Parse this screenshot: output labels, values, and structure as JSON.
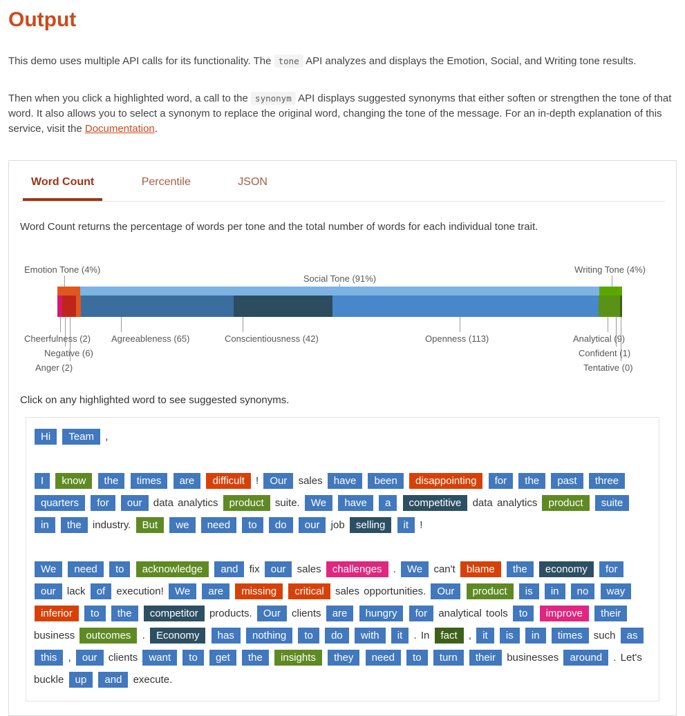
{
  "page": {
    "title": "Output",
    "intro1_pre": "This demo uses multiple API calls for its functionality. The",
    "intro1_code": "tone",
    "intro1_post": "API analyzes and displays the Emotion, Social, and Writing tone results.",
    "intro2_pre": "Then when you click a highlighted word, a call to the",
    "intro2_code": "synonym",
    "intro2_mid": "API displays suggested synonyms that either soften or strengthen the tone of that word. It also allows you to select a synonym to replace the original word, changing the tone of the message. For an in-depth explanation of this service, visit the",
    "intro2_link": "Documentation",
    "intro2_end": "."
  },
  "tabs": [
    {
      "label": "Word Count",
      "active": true
    },
    {
      "label": "Percentile",
      "active": false
    },
    {
      "label": "JSON",
      "active": false
    }
  ],
  "word_count_description": "Word Count returns the percentage of words per tone and the total number of words for each individual tone trait.",
  "click_instruction": "Click on any highlighted word to see suggested synonyms.",
  "chart_data": {
    "type": "stacked-bar",
    "tones": [
      {
        "name": "emotion-tone",
        "label": "Emotion Tone (4%)",
        "percent": 4,
        "color": "#e0571e"
      },
      {
        "name": "social-tone",
        "label": "Social Tone (91%)",
        "percent": 91,
        "color": "#7cb3e3"
      },
      {
        "name": "writing-tone",
        "label": "Writing Tone (4%)",
        "percent": 4,
        "color": "#5aa700"
      }
    ],
    "traits": [
      {
        "name": "cheerfulness",
        "label": "Cheerfulness (2)",
        "count": 2,
        "color": "#d6186c"
      },
      {
        "name": "negative",
        "label": "Negative (6)",
        "count": 6,
        "color": "#c0251c"
      },
      {
        "name": "anger",
        "label": "Anger (2)",
        "count": 2,
        "color": "#e0571e"
      },
      {
        "name": "agreeableness",
        "label": "Agreeableness (65)",
        "count": 65,
        "color": "#3b6e9e"
      },
      {
        "name": "conscientiousness",
        "label": "Conscientiousness (42)",
        "count": 42,
        "color": "#2c4d5f"
      },
      {
        "name": "openness",
        "label": "Openness (113)",
        "count": 113,
        "color": "#4887c9"
      },
      {
        "name": "analytical",
        "label": "Analytical (9)",
        "count": 9,
        "color": "#5a9216"
      },
      {
        "name": "confident",
        "label": "Confident (1)",
        "count": 1,
        "color": "#3e6119"
      },
      {
        "name": "tentative",
        "label": "Tentative (0)",
        "count": 0,
        "color": "#808080"
      }
    ]
  },
  "message": {
    "colors": {
      "b": "#4178be",
      "g": "#5f8a23",
      "o": "#d74108",
      "s": "#2d4f63",
      "p": "#e0267e",
      "d": "#3e6119"
    },
    "paragraphs": [
      [
        [
          "Hi",
          "b"
        ],
        [
          "Team",
          "b"
        ],
        [
          ",",
          "n"
        ]
      ],
      [
        [
          "I",
          "b"
        ],
        [
          "know",
          "g"
        ],
        [
          "the",
          "b"
        ],
        [
          "times",
          "b"
        ],
        [
          "are",
          "b"
        ],
        [
          "difficult",
          "o"
        ],
        [
          "!",
          "n"
        ],
        [
          "Our",
          "b"
        ],
        [
          "sales",
          "n"
        ],
        [
          "have",
          "b"
        ],
        [
          "been",
          "b"
        ],
        [
          "disappointing",
          "o"
        ],
        [
          "for",
          "b"
        ],
        [
          "the",
          "b"
        ],
        [
          "past",
          "b"
        ],
        [
          "three",
          "b"
        ],
        [
          "quarters",
          "b"
        ],
        [
          "for",
          "b"
        ],
        [
          "our",
          "b"
        ],
        [
          "data",
          "n"
        ],
        [
          "analytics",
          "n"
        ],
        [
          "product",
          "g"
        ],
        [
          "suite.",
          "n"
        ],
        [
          "We",
          "b"
        ],
        [
          "have",
          "b"
        ],
        [
          "a",
          "b"
        ],
        [
          "competitive",
          "s"
        ],
        [
          "data",
          "n"
        ],
        [
          "analytics",
          "n"
        ],
        [
          "product",
          "g"
        ],
        [
          "suite",
          "b"
        ],
        [
          "in",
          "b"
        ],
        [
          "the",
          "b"
        ],
        [
          "industry.",
          "n"
        ],
        [
          "But",
          "g"
        ],
        [
          "we",
          "b"
        ],
        [
          "need",
          "b"
        ],
        [
          "to",
          "b"
        ],
        [
          "do",
          "b"
        ],
        [
          "our",
          "b"
        ],
        [
          "job",
          "n"
        ],
        [
          "selling",
          "s"
        ],
        [
          "it",
          "b"
        ],
        [
          "!",
          "n"
        ]
      ],
      [
        [
          "We",
          "b"
        ],
        [
          "need",
          "b"
        ],
        [
          "to",
          "b"
        ],
        [
          "acknowledge",
          "g"
        ],
        [
          "and",
          "b"
        ],
        [
          "fix",
          "n"
        ],
        [
          "our",
          "b"
        ],
        [
          "sales",
          "n"
        ],
        [
          "challenges",
          "p"
        ],
        [
          ".",
          "n"
        ],
        [
          "We",
          "b"
        ],
        [
          "can't",
          "n"
        ],
        [
          "blame",
          "o"
        ],
        [
          "the",
          "b"
        ],
        [
          "economy",
          "s"
        ],
        [
          "for",
          "b"
        ],
        [
          "our",
          "b"
        ],
        [
          "lack",
          "n"
        ],
        [
          "of",
          "b"
        ],
        [
          "execution!",
          "n"
        ],
        [
          "We",
          "b"
        ],
        [
          "are",
          "b"
        ],
        [
          "missing",
          "o"
        ],
        [
          "critical",
          "o"
        ],
        [
          "sales",
          "n"
        ],
        [
          "opportunities.",
          "n"
        ],
        [
          "Our",
          "b"
        ],
        [
          "product",
          "g"
        ],
        [
          "is",
          "b"
        ],
        [
          "in",
          "b"
        ],
        [
          "no",
          "b"
        ],
        [
          "way",
          "b"
        ],
        [
          "inferior",
          "o"
        ],
        [
          "to",
          "b"
        ],
        [
          "the",
          "b"
        ],
        [
          "competitor",
          "s"
        ],
        [
          "products.",
          "n"
        ],
        [
          "Our",
          "b"
        ],
        [
          "clients",
          "n"
        ],
        [
          "are",
          "b"
        ],
        [
          "hungry",
          "b"
        ],
        [
          "for",
          "b"
        ],
        [
          "analytical",
          "n"
        ],
        [
          "tools",
          "n"
        ],
        [
          "to",
          "b"
        ],
        [
          "improve",
          "p"
        ],
        [
          "their",
          "b"
        ],
        [
          "business",
          "n"
        ],
        [
          "outcomes",
          "g"
        ],
        [
          ".",
          "n"
        ],
        [
          "Economy",
          "s"
        ],
        [
          "has",
          "b"
        ],
        [
          "nothing",
          "b"
        ],
        [
          "to",
          "b"
        ],
        [
          "do",
          "b"
        ],
        [
          "with",
          "b"
        ],
        [
          "it",
          "b"
        ],
        [
          ".",
          "n"
        ],
        [
          "In",
          "n"
        ],
        [
          "fact",
          "d"
        ],
        [
          ",",
          "n"
        ],
        [
          "it",
          "b"
        ],
        [
          "is",
          "b"
        ],
        [
          "in",
          "b"
        ],
        [
          "times",
          "b"
        ],
        [
          "such",
          "n"
        ],
        [
          "as",
          "b"
        ],
        [
          "this",
          "b"
        ],
        [
          ",",
          "n"
        ],
        [
          "our",
          "b"
        ],
        [
          "clients",
          "n"
        ],
        [
          "want",
          "b"
        ],
        [
          "to",
          "b"
        ],
        [
          "get",
          "b"
        ],
        [
          "the",
          "b"
        ],
        [
          "insights",
          "g"
        ],
        [
          "they",
          "b"
        ],
        [
          "need",
          "b"
        ],
        [
          "to",
          "b"
        ],
        [
          "turn",
          "b"
        ],
        [
          "their",
          "b"
        ],
        [
          "businesses",
          "n"
        ],
        [
          "around",
          "b"
        ],
        [
          ".",
          "n"
        ],
        [
          "Let's",
          "n"
        ],
        [
          "buckle",
          "n"
        ],
        [
          "up",
          "b"
        ],
        [
          "and",
          "b"
        ],
        [
          "execute.",
          "n"
        ]
      ]
    ]
  }
}
